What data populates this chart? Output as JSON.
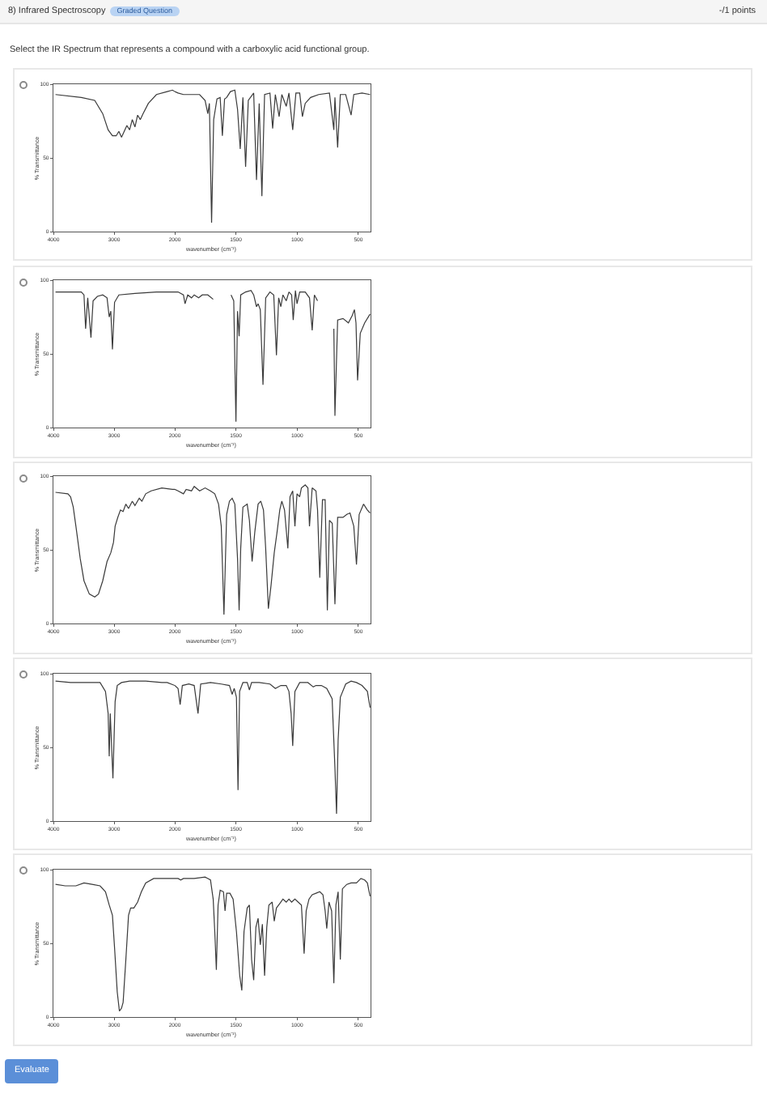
{
  "chart_data": [
    {
      "type": "other",
      "title": "8) Infrared Spectroscopy",
      "annotations": [
        "Graded Question",
        "-/1 points",
        "Select the IR Spectrum that represents a compound with a carboxylic acid functional group."
      ]
    },
    {
      "type": "line",
      "color": "#3a3a3a",
      "ylabel": "% Transmittance",
      "xlim": [
        4000,
        2000
      ],
      "xticks": [
        4000,
        3000,
        2000
      ],
      "ylim": [
        0,
        100
      ],
      "yticks": [
        0,
        50,
        100
      ],
      "x": [
        3965,
        3540,
        3319,
        3187,
        3098,
        3027,
        2965,
        2921,
        2877,
        2833,
        2789,
        2744,
        2700,
        2656,
        2612,
        2568,
        2523,
        2435,
        2302,
        2125,
        2037,
        2000
      ],
      "values": [
        93,
        91,
        89,
        80,
        69,
        65,
        65,
        68,
        64,
        68,
        72,
        69,
        76,
        71,
        79,
        76,
        80,
        87,
        93,
        95,
        96,
        95
      ]
    },
    {
      "type": "line",
      "color": "#3a3a3a",
      "xlabel": "wavenumber (cm⁻¹)",
      "xlim": [
        2000,
        400
      ],
      "xticks": [
        1500,
        1000,
        500
      ],
      "ylim": [
        0,
        100
      ],
      "tick_labels": "x",
      "x": [
        2000,
        1973,
        1929,
        1885,
        1797,
        1752,
        1730,
        1717,
        1699,
        1682,
        1655,
        1629,
        1611,
        1593,
        1576,
        1545,
        1509,
        1487,
        1465,
        1443,
        1421,
        1399,
        1355,
        1332,
        1310,
        1288,
        1266,
        1222,
        1200,
        1178,
        1147,
        1125,
        1089,
        1067,
        1036,
        1010,
        979,
        957,
        934,
        890,
        824,
        736,
        700,
        691,
        669,
        647,
        603,
        559,
        537,
        470,
        404
      ],
      "values": [
        95,
        94,
        93,
        93,
        93,
        89,
        80,
        87,
        6,
        76,
        90,
        91,
        65,
        90,
        91,
        95,
        96,
        83,
        56,
        91,
        44,
        89,
        94,
        35,
        87,
        24,
        93,
        94,
        70,
        93,
        78,
        93,
        85,
        94,
        69,
        94,
        94,
        78,
        87,
        91,
        93,
        94,
        69,
        91,
        57,
        93,
        93,
        79,
        93,
        94,
        93
      ]
    },
    {
      "type": "line",
      "color": "#3a3a3a",
      "ylabel": "% Transmittance",
      "xlim": [
        4000,
        2000
      ],
      "xticks": [
        4000,
        3000,
        2000
      ],
      "ylim": [
        0,
        100
      ],
      "yticks": [
        0,
        50,
        100
      ],
      "x": [
        3965,
        3540,
        3496,
        3469,
        3434,
        3381,
        3346,
        3275,
        3187,
        3116,
        3080,
        3054,
        3027,
        2992,
        2921,
        2656,
        2302,
        2000
      ],
      "values": [
        92,
        92,
        90,
        67,
        88,
        61,
        86,
        89,
        90,
        88,
        75,
        79,
        53,
        85,
        90,
        91,
        92,
        92
      ]
    },
    {
      "type": "line",
      "color": "#3a3a3a",
      "xlabel": "wavenumber (cm⁻¹)",
      "xlim": [
        2000,
        400
      ],
      "xticks": [
        1500,
        1000,
        500
      ],
      "ylim": [
        0,
        100
      ],
      "tick_labels": "x",
      "x": [
        2000,
        1973,
        1929,
        1916,
        1894,
        1863,
        1841,
        1805,
        1775,
        1730,
        1686,
        1610,
        1540,
        1518,
        1500,
        1487,
        1474,
        1461,
        1421,
        1377,
        1355,
        1332,
        1319,
        1301,
        1279,
        1257,
        1222,
        1191,
        1169,
        1151,
        1133,
        1116,
        1089,
        1067,
        1045,
        1032,
        1014,
        1001,
        979,
        934,
        899,
        877,
        859,
        833,
        770,
        700,
        691,
        669,
        625,
        581,
        550,
        532,
        519,
        506,
        484,
        448,
        404
      ],
      "values": [
        92,
        92,
        90,
        84,
        90,
        88,
        90,
        88,
        90,
        90,
        87,
        null,
        90,
        86,
        4,
        79,
        62,
        90,
        92,
        93,
        90,
        82,
        84,
        80,
        29,
        88,
        92,
        90,
        49,
        88,
        82,
        90,
        86,
        92,
        90,
        73,
        93,
        84,
        92,
        92,
        88,
        66,
        90,
        86,
        null,
        67,
        8,
        73,
        74,
        71,
        76,
        80,
        71,
        32,
        64,
        71,
        77
      ]
    },
    {
      "type": "line",
      "color": "#3a3a3a",
      "ylabel": "% Transmittance",
      "xlim": [
        4000,
        2000
      ],
      "xticks": [
        4000,
        3000,
        2000
      ],
      "ylim": [
        0,
        100
      ],
      "yticks": [
        0,
        50,
        100
      ],
      "x": [
        3965,
        3761,
        3717,
        3673,
        3629,
        3558,
        3496,
        3408,
        3319,
        3257,
        3187,
        3116,
        3054,
        3010,
        2983,
        2939,
        2895,
        2851,
        2806,
        2762,
        2700,
        2656,
        2585,
        2541,
        2479,
        2390,
        2214,
        2037,
        2000
      ],
      "values": [
        89,
        88,
        86,
        79,
        66,
        44,
        29,
        20,
        18,
        20,
        29,
        42,
        48,
        55,
        66,
        72,
        77,
        76,
        81,
        78,
        83,
        80,
        85,
        83,
        88,
        90,
        92,
        91,
        91
      ]
    },
    {
      "type": "line",
      "color": "#3a3a3a",
      "xlabel": "wavenumber (cm⁻¹)",
      "xlim": [
        2000,
        400
      ],
      "xticks": [
        1500,
        1000,
        500
      ],
      "ylim": [
        0,
        100
      ],
      "tick_labels": "x",
      "x": [
        2000,
        1973,
        1929,
        1907,
        1863,
        1841,
        1797,
        1752,
        1708,
        1673,
        1642,
        1620,
        1598,
        1576,
        1553,
        1531,
        1509,
        1487,
        1474,
        1461,
        1443,
        1408,
        1390,
        1368,
        1346,
        1319,
        1297,
        1275,
        1257,
        1235,
        1213,
        1187,
        1164,
        1142,
        1125,
        1103,
        1076,
        1058,
        1036,
        1018,
        1001,
        979,
        965,
        934,
        912,
        899,
        877,
        846,
        833,
        815,
        793,
        771,
        753,
        736,
        713,
        691,
        669,
        625,
        594,
        568,
        537,
        515,
        493,
        457,
        426,
        404
      ],
      "values": [
        91,
        90,
        88,
        91,
        90,
        93,
        90,
        92,
        90,
        88,
        81,
        66,
        6,
        74,
        83,
        85,
        81,
        44,
        9,
        51,
        79,
        81,
        70,
        42,
        62,
        81,
        83,
        77,
        51,
        10,
        26,
        48,
        62,
        77,
        83,
        77,
        51,
        86,
        90,
        66,
        88,
        86,
        92,
        94,
        92,
        66,
        92,
        90,
        77,
        31,
        84,
        84,
        9,
        70,
        68,
        13,
        72,
        72,
        74,
        75,
        66,
        40,
        74,
        81,
        77,
        75
      ]
    },
    {
      "type": "line",
      "color": "#3a3a3a",
      "ylabel": "% Transmittance",
      "xlim": [
        4000,
        2000
      ],
      "xticks": [
        4000,
        3000,
        2000
      ],
      "ylim": [
        0,
        100
      ],
      "yticks": [
        0,
        50,
        100
      ],
      "x": [
        3965,
        3717,
        3363,
        3231,
        3142,
        3098,
        3080,
        3063,
        3045,
        3019,
        2983,
        2948,
        2877,
        2744,
        2479,
        2214,
        2125,
        2000
      ],
      "values": [
        95,
        94,
        94,
        94,
        88,
        73,
        44,
        73,
        55,
        29,
        81,
        92,
        94,
        95,
        95,
        94,
        94,
        92
      ]
    },
    {
      "type": "line",
      "color": "#3a3a3a",
      "xlabel": "wavenumber (cm⁻¹)",
      "xlim": [
        2000,
        400
      ],
      "xticks": [
        1500,
        1000,
        500
      ],
      "ylim": [
        0,
        100
      ],
      "tick_labels": "x",
      "x": [
        2000,
        1973,
        1956,
        1938,
        1885,
        1841,
        1810,
        1788,
        1708,
        1620,
        1553,
        1531,
        1514,
        1496,
        1483,
        1470,
        1443,
        1408,
        1390,
        1372,
        1310,
        1222,
        1178,
        1133,
        1089,
        1067,
        1049,
        1036,
        1018,
        979,
        912,
        868,
        846,
        802,
        758,
        714,
        691,
        678,
        665,
        647,
        603,
        559,
        515,
        470,
        426,
        404
      ],
      "values": [
        92,
        90,
        79,
        92,
        93,
        92,
        73,
        93,
        94,
        93,
        92,
        86,
        90,
        84,
        21,
        88,
        94,
        94,
        89,
        94,
        94,
        93,
        90,
        92,
        92,
        88,
        73,
        51,
        88,
        94,
        94,
        91,
        92,
        92,
        90,
        83,
        36,
        5,
        55,
        84,
        93,
        95,
        94,
        92,
        88,
        77
      ]
    },
    {
      "type": "line",
      "color": "#3a3a3a",
      "ylabel": "% Transmittance",
      "xlim": [
        4000,
        2000
      ],
      "xticks": [
        4000,
        3000,
        2000
      ],
      "ylim": [
        0,
        100
      ],
      "yticks": [
        0,
        50,
        100
      ],
      "x": [
        3965,
        3805,
        3629,
        3496,
        3363,
        3231,
        3142,
        3080,
        3027,
        2992,
        2948,
        2912,
        2877,
        2851,
        2806,
        2762,
        2727,
        2674,
        2612,
        2550,
        2479,
        2347,
        2214,
        2080,
        2000
      ],
      "values": [
        90,
        89,
        89,
        91,
        90,
        89,
        85,
        76,
        69,
        47,
        17,
        4,
        6,
        10,
        39,
        69,
        74,
        74,
        78,
        85,
        91,
        94,
        94,
        94,
        94
      ]
    },
    {
      "type": "line",
      "color": "#3a3a3a",
      "xlabel": "wavenumber (cm⁻¹)",
      "xlim": [
        2000,
        400
      ],
      "xticks": [
        1500,
        1000,
        500
      ],
      "ylim": [
        0,
        100
      ],
      "tick_labels": "x",
      "x": [
        2000,
        1973,
        1951,
        1929,
        1841,
        1752,
        1708,
        1686,
        1673,
        1660,
        1646,
        1629,
        1602,
        1589,
        1576,
        1549,
        1523,
        1496,
        1469,
        1452,
        1434,
        1408,
        1390,
        1372,
        1355,
        1337,
        1319,
        1301,
        1284,
        1266,
        1248,
        1231,
        1204,
        1187,
        1169,
        1142,
        1116,
        1089,
        1067,
        1045,
        1018,
        992,
        965,
        943,
        926,
        903,
        877,
        846,
        815,
        789,
        771,
        758,
        740,
        718,
        700,
        683,
        665,
        647,
        630,
        594,
        559,
        515,
        479,
        448,
        426,
        404
      ],
      "values": [
        94,
        94,
        93,
        94,
        94,
        95,
        93,
        80,
        58,
        32,
        76,
        86,
        85,
        72,
        84,
        84,
        80,
        58,
        28,
        18,
        58,
        74,
        76,
        39,
        25,
        61,
        67,
        49,
        63,
        28,
        61,
        76,
        78,
        65,
        74,
        77,
        80,
        78,
        80,
        78,
        80,
        78,
        76,
        43,
        72,
        80,
        83,
        84,
        85,
        83,
        72,
        60,
        78,
        72,
        23,
        76,
        85,
        39,
        87,
        90,
        91,
        91,
        94,
        93,
        91,
        82
      ]
    },
    {
      "type": "other",
      "annotations": [
        "Evaluate"
      ]
    }
  ]
}
